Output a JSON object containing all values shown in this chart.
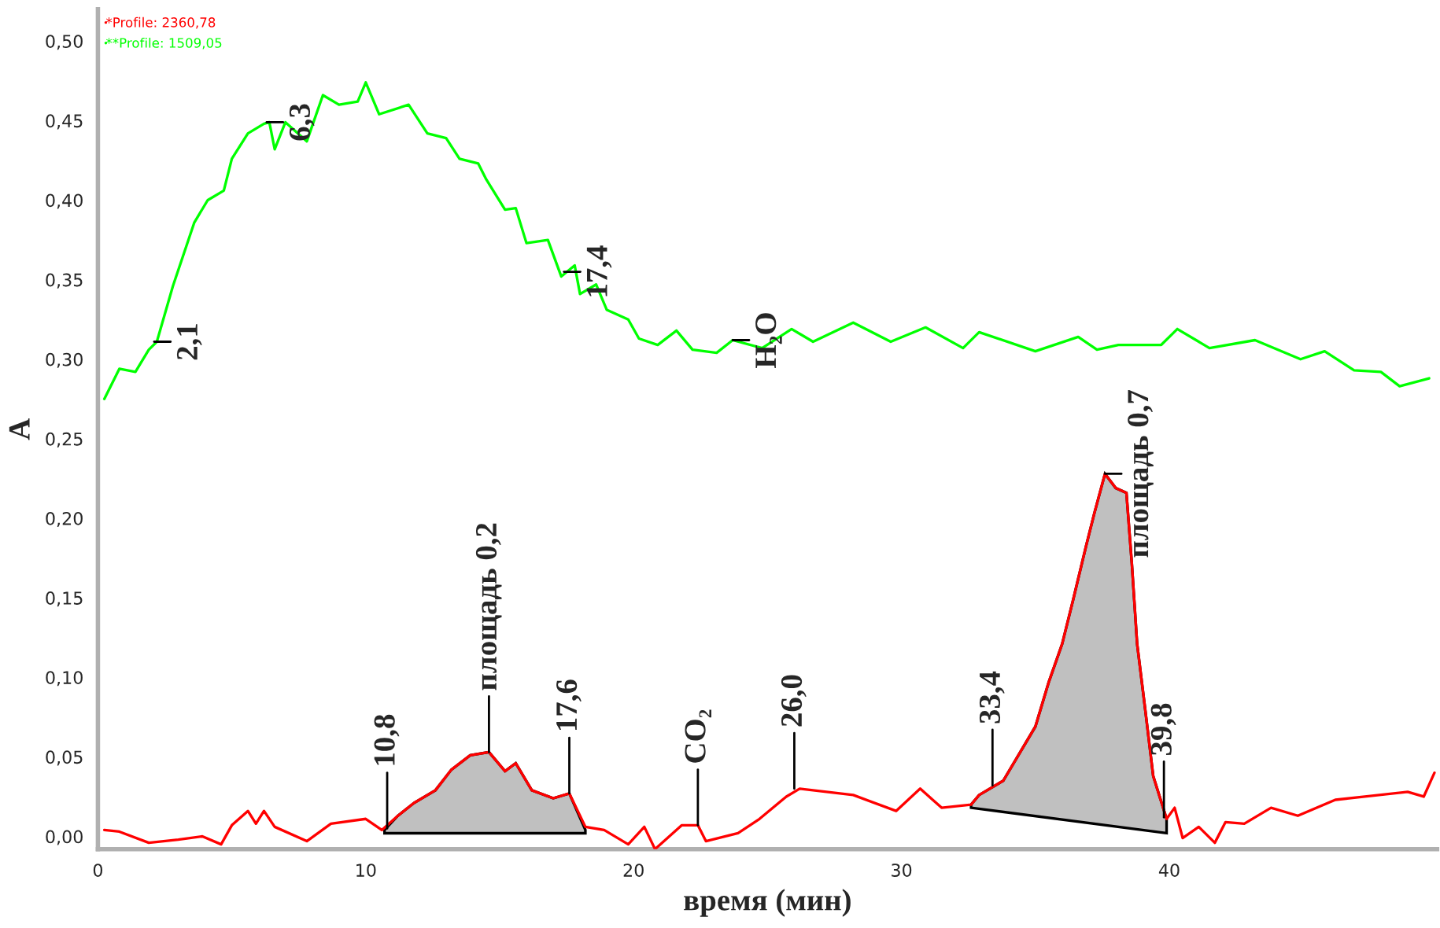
{
  "chart_data": {
    "type": "line",
    "xlabel": "время (мин)",
    "ylabel": "A",
    "xlim": [
      0,
      50
    ],
    "xticks": [
      0,
      10,
      20,
      30,
      40
    ],
    "ylim": [
      -0.008,
      0.52
    ],
    "yticks": [
      {
        "value": 0,
        "label": "0,00"
      },
      {
        "value": 0.05,
        "label": "0,05"
      },
      {
        "value": 0.1,
        "label": "0,10"
      },
      {
        "value": 0.15,
        "label": "0,15"
      },
      {
        "value": 0.2,
        "label": "0,20"
      },
      {
        "value": 0.25,
        "label": "0,25"
      },
      {
        "value": 0.3,
        "label": "0,30"
      },
      {
        "value": 0.35,
        "label": "0,35"
      },
      {
        "value": 0.4,
        "label": "0,40"
      },
      {
        "value": 0.45,
        "label": "0,45"
      },
      {
        "value": 0.5,
        "label": "0,50"
      }
    ],
    "legend": "top left",
    "series": [
      {
        "type": "area",
        "color": "#c0c0c0",
        "x": [
          10.7,
          11.2,
          11.8,
          12.6,
          13.2,
          13.9,
          14.6,
          15.2,
          15.6,
          16.2,
          17.0,
          17.6,
          18.2,
          18.2,
          10.7
        ],
        "values": [
          0.004,
          0.013,
          0.021,
          0.029,
          0.042,
          0.051,
          0.053,
          0.041,
          0.046,
          0.029,
          0.024,
          0.027,
          0.004,
          0.002,
          0.002
        ]
      },
      {
        "type": "area",
        "color": "#c0c0c0",
        "x": [
          32.6,
          32.9,
          33.8,
          34.4,
          35.0,
          35.5,
          36.0,
          36.4,
          36.7,
          36.9,
          37.2,
          37.6,
          38.0,
          38.4,
          38.6,
          38.8,
          39.1,
          39.4,
          39.9,
          39.9,
          32.6
        ],
        "values": [
          0.02,
          0.026,
          0.035,
          0.052,
          0.069,
          0.097,
          0.121,
          0.148,
          0.169,
          0.183,
          0.203,
          0.228,
          0.219,
          0.216,
          0.172,
          0.121,
          0.08,
          0.038,
          0.011,
          0.002,
          0.018
        ]
      },
      {
        "name": "*Profile: 2360,78",
        "color": "#ff0000",
        "x": [
          0.24,
          0.8,
          1.9,
          3.0,
          3.9,
          4.6,
          5.0,
          5.6,
          5.9,
          6.2,
          6.6,
          7.8,
          8.7,
          10.0,
          10.6,
          11.2,
          11.8,
          12.6,
          13.2,
          13.9,
          14.6,
          15.2,
          15.6,
          16.2,
          17.0,
          17.6,
          18.2,
          18.9,
          19.8,
          20.4,
          20.8,
          21.8,
          22.4,
          22.7,
          23.9,
          24.7,
          25.7,
          26.2,
          28.2,
          29.8,
          30.7,
          31.5,
          32.6,
          32.9,
          33.8,
          34.4,
          35.0,
          35.5,
          36.0,
          36.4,
          36.7,
          36.9,
          37.2,
          37.6,
          38.0,
          38.4,
          38.6,
          38.8,
          39.1,
          39.4,
          39.9,
          40.2,
          40.5,
          41.1,
          41.7,
          42.1,
          42.8,
          43.8,
          44.8,
          46.2,
          47.3,
          48.9,
          49.5,
          49.9
        ],
        "values": [
          0.004,
          0.003,
          -0.004,
          -0.002,
          0.0,
          -0.005,
          0.007,
          0.016,
          0.008,
          0.016,
          0.006,
          -0.003,
          0.008,
          0.011,
          0.004,
          0.013,
          0.021,
          0.029,
          0.042,
          0.051,
          0.053,
          0.041,
          0.046,
          0.029,
          0.024,
          0.027,
          0.006,
          0.004,
          -0.005,
          0.006,
          -0.008,
          0.007,
          0.007,
          -0.003,
          0.002,
          0.011,
          0.025,
          0.03,
          0.026,
          0.016,
          0.03,
          0.018,
          0.02,
          0.026,
          0.035,
          0.052,
          0.069,
          0.097,
          0.121,
          0.148,
          0.169,
          0.183,
          0.203,
          0.228,
          0.219,
          0.216,
          0.172,
          0.121,
          0.08,
          0.038,
          0.011,
          0.018,
          -0.001,
          0.006,
          -0.004,
          0.009,
          0.008,
          0.018,
          0.013,
          0.023,
          0.025,
          0.028,
          0.025,
          0.04
        ]
      },
      {
        "name": "**Profile: 1509,05",
        "color": "#00ff00",
        "x": [
          0.24,
          0.8,
          1.4,
          1.9,
          2.2,
          2.8,
          3.6,
          4.1,
          4.7,
          5.0,
          5.6,
          6.2,
          6.4,
          6.6,
          7.0,
          7.8,
          8.4,
          9.0,
          9.7,
          10.0,
          10.5,
          11.6,
          12.3,
          13.0,
          13.5,
          14.2,
          14.5,
          15.2,
          15.6,
          16.0,
          16.8,
          17.3,
          17.8,
          18.0,
          18.6,
          19.0,
          19.8,
          20.2,
          20.9,
          21.6,
          22.2,
          23.1,
          23.7,
          24.8,
          25.9,
          26.7,
          28.2,
          29.6,
          30.9,
          32.3,
          32.9,
          35.0,
          36.6,
          37.3,
          38.1,
          39.7,
          40.3,
          41.5,
          43.2,
          44.9,
          45.8,
          46.9,
          47.9,
          48.6,
          49.7
        ],
        "values": [
          0.275,
          0.294,
          0.292,
          0.306,
          0.311,
          0.346,
          0.386,
          0.4,
          0.406,
          0.426,
          0.442,
          0.448,
          0.449,
          0.432,
          0.449,
          0.437,
          0.466,
          0.46,
          0.462,
          0.474,
          0.454,
          0.46,
          0.442,
          0.439,
          0.426,
          0.423,
          0.413,
          0.394,
          0.395,
          0.373,
          0.375,
          0.352,
          0.359,
          0.341,
          0.347,
          0.331,
          0.325,
          0.313,
          0.309,
          0.318,
          0.306,
          0.304,
          0.312,
          0.307,
          0.319,
          0.311,
          0.323,
          0.311,
          0.32,
          0.307,
          0.317,
          0.305,
          0.314,
          0.306,
          0.309,
          0.309,
          0.319,
          0.307,
          0.312,
          0.3,
          0.305,
          0.293,
          0.292,
          0.283,
          0.288
        ]
      }
    ],
    "annotations": [
      {
        "text": "2,1",
        "x": 2.1,
        "y": 0.311
      },
      {
        "text": "6,3",
        "x": 6.3,
        "y": 0.449
      },
      {
        "text": "17,4",
        "x": 17.4,
        "y": 0.355
      },
      {
        "text": "H₂O",
        "x": 23.7,
        "y": 0.312
      },
      {
        "text": "10,8",
        "x": 10.8,
        "y": 0.005
      },
      {
        "text": "площадь 0,2",
        "x": 14.6,
        "y": 0.053
      },
      {
        "text": "17,6",
        "x": 17.6,
        "y": 0.027
      },
      {
        "text": "CO₂",
        "x": 22.4,
        "y": 0.007
      },
      {
        "text": "26,0",
        "x": 26.0,
        "y": 0.03
      },
      {
        "text": "33,4",
        "x": 33.4,
        "y": 0.032
      },
      {
        "text": "площадь 0,7",
        "x": 37.6,
        "y": 0.228
      },
      {
        "text": "39,8",
        "x": 39.8,
        "y": 0.012
      }
    ]
  }
}
